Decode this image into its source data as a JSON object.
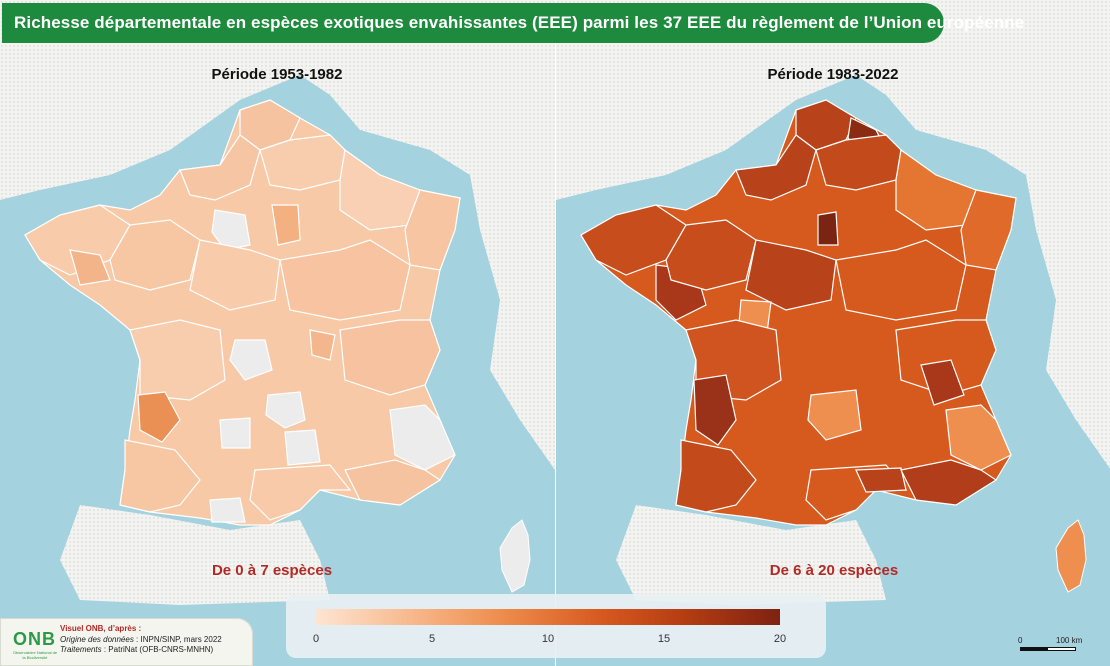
{
  "title": "Richesse départementale en espèces exotiques envahissantes (EEE) parmi les 37 EEE du règlement de l’Union européenne",
  "colors": {
    "title_bar": "#1d8a3e",
    "title_accent": "#f0c419",
    "sea": "#a4d2de",
    "land_abroad": "#f4f4f2",
    "range_label": "#b22a26",
    "scale_min": "#fde5d2",
    "scale_max": "#7e2212"
  },
  "maps": [
    {
      "period_title": "Période 1953-1982",
      "range_label": "De 0 à 7 espèces",
      "typical_fill": "#f7c7a3",
      "notable_fills": [
        "#eeeeee",
        "#f0a374",
        "#e6823f"
      ]
    },
    {
      "period_title": "Période 1983-2022",
      "range_label": "De 6 à 20 espèces",
      "typical_fill": "#d65a1e",
      "notable_fills": [
        "#ef8f4f",
        "#a9381b",
        "#7a2413"
      ]
    }
  ],
  "legend": {
    "ticks": [
      "0",
      "5",
      "10",
      "15",
      "20"
    ],
    "min": 0,
    "max": 20
  },
  "credits": {
    "logo_text": "ONB",
    "logo_subtitle": "Observatoire National de la Biodiversité",
    "line1": "Visuel ONB, d’après :",
    "line2_label": "Origine des données",
    "line2_value": " : INPN/SINP, mars 2022",
    "line3_label": "Traitements",
    "line3_value": " : PatriNat (OFB-CNRS-MNHN)"
  },
  "scalebar": {
    "zero": "0",
    "distance": "100 km"
  }
}
